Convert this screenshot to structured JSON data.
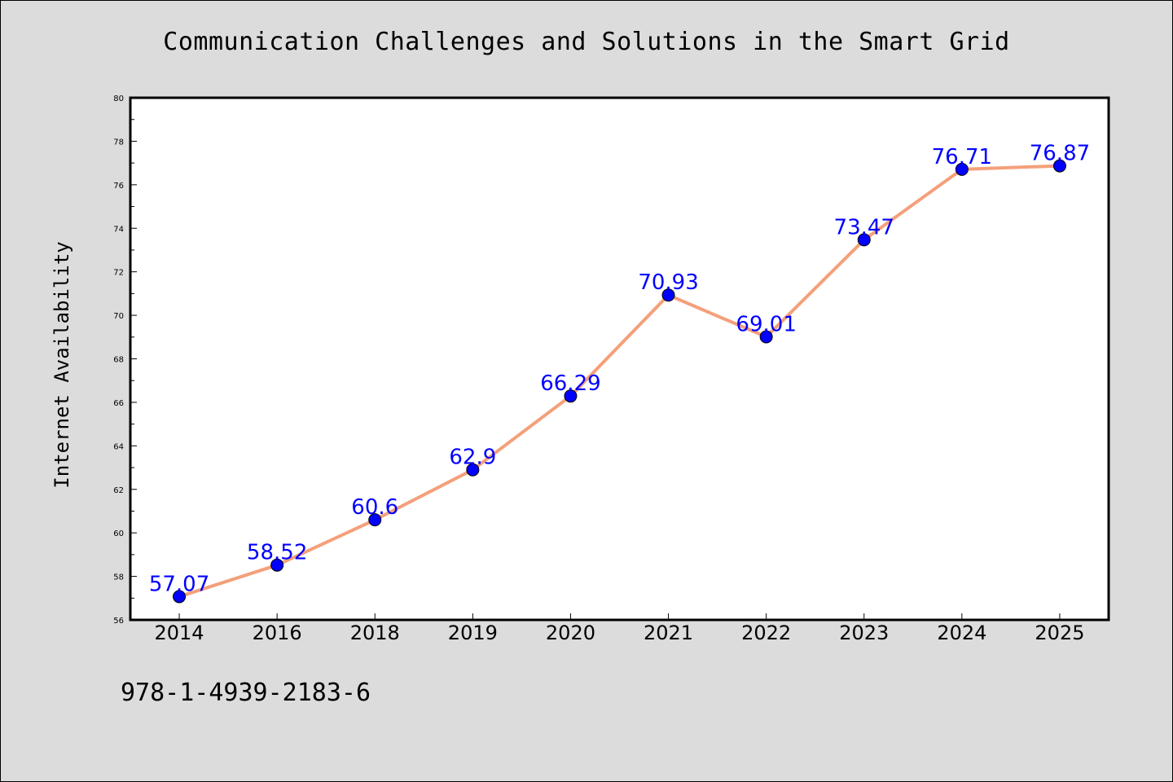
{
  "chart_data": {
    "type": "line",
    "title": "Communication Challenges and Solutions in the Smart Grid",
    "xlabel": "",
    "ylabel": "Internet Availability",
    "categories": [
      "2014",
      "2016",
      "2018",
      "2019",
      "2020",
      "2021",
      "2022",
      "2023",
      "2024",
      "2025"
    ],
    "series": [
      {
        "values": [
          57.07,
          58.52,
          60.6,
          62.9,
          66.29,
          70.93,
          69.01,
          73.47,
          76.71,
          76.87
        ],
        "data_labels": [
          "57.07",
          "58.52",
          "60.6",
          "62.9",
          "66.29",
          "70.93",
          "69.01",
          "73.47",
          "76.71",
          "76.87"
        ],
        "line_color": "#f4a07a",
        "marker_color": "#0000ff"
      }
    ],
    "ylim": [
      56,
      80
    ],
    "yticks": [
      "56",
      "58",
      "60",
      "62",
      "64",
      "66",
      "68",
      "70",
      "72",
      "74",
      "76",
      "78",
      "80"
    ],
    "grid": false,
    "legend": "none"
  },
  "footer": {
    "code": "978-1-4939-2183-6"
  },
  "colors": {
    "background": "#dcdcdc",
    "plot_background": "#ffffff",
    "label_color": "#0000ff"
  }
}
